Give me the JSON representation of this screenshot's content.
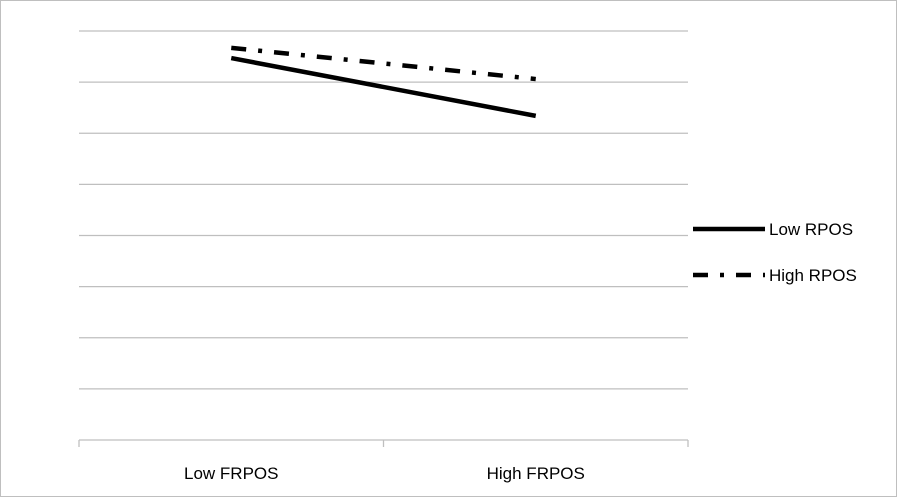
{
  "chart_data": {
    "type": "line",
    "title": "",
    "xlabel": "",
    "ylabel": "",
    "categories": [
      "Low FRPOS",
      "High FRPOS"
    ],
    "series": [
      {
        "name": "Low RPOS",
        "values": [
          7.47,
          6.34
        ],
        "style": "solid",
        "color": "#000000"
      },
      {
        "name": "High RPOS",
        "values": [
          7.67,
          7.06
        ],
        "style": "dash-dot",
        "color": "#000000"
      }
    ],
    "ylim": [
      0,
      8
    ],
    "grid": true,
    "gridline_count": 8,
    "legend_position": "right"
  }
}
